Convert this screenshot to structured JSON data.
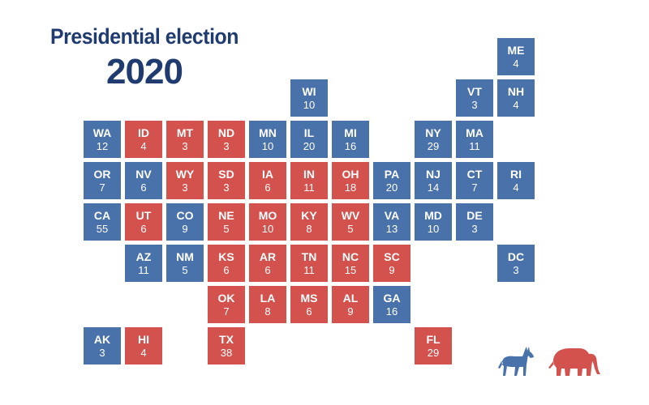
{
  "title": {
    "line1": "Presidential election",
    "line2": "2020"
  },
  "colors": {
    "democrat": "#4a72aa",
    "republican": "#d3524d"
  },
  "icons": {
    "democrat": "donkey-icon",
    "republican": "elephant-icon"
  },
  "states": [
    {
      "abbr": "ME",
      "ev": "4",
      "party": "D",
      "row": 0,
      "col": 10
    },
    {
      "abbr": "WI",
      "ev": "10",
      "party": "D",
      "row": 1,
      "col": 5
    },
    {
      "abbr": "VT",
      "ev": "3",
      "party": "D",
      "row": 1,
      "col": 9
    },
    {
      "abbr": "NH",
      "ev": "4",
      "party": "D",
      "row": 1,
      "col": 10
    },
    {
      "abbr": "WA",
      "ev": "12",
      "party": "D",
      "row": 2,
      "col": 0
    },
    {
      "abbr": "ID",
      "ev": "4",
      "party": "R",
      "row": 2,
      "col": 1
    },
    {
      "abbr": "MT",
      "ev": "3",
      "party": "R",
      "row": 2,
      "col": 2
    },
    {
      "abbr": "ND",
      "ev": "3",
      "party": "R",
      "row": 2,
      "col": 3
    },
    {
      "abbr": "MN",
      "ev": "10",
      "party": "D",
      "row": 2,
      "col": 4
    },
    {
      "abbr": "IL",
      "ev": "20",
      "party": "D",
      "row": 2,
      "col": 5
    },
    {
      "abbr": "MI",
      "ev": "16",
      "party": "D",
      "row": 2,
      "col": 6
    },
    {
      "abbr": "NY",
      "ev": "29",
      "party": "D",
      "row": 2,
      "col": 8
    },
    {
      "abbr": "MA",
      "ev": "11",
      "party": "D",
      "row": 2,
      "col": 9
    },
    {
      "abbr": "OR",
      "ev": "7",
      "party": "D",
      "row": 3,
      "col": 0
    },
    {
      "abbr": "NV",
      "ev": "6",
      "party": "D",
      "row": 3,
      "col": 1
    },
    {
      "abbr": "WY",
      "ev": "3",
      "party": "R",
      "row": 3,
      "col": 2
    },
    {
      "abbr": "SD",
      "ev": "3",
      "party": "R",
      "row": 3,
      "col": 3
    },
    {
      "abbr": "IA",
      "ev": "6",
      "party": "R",
      "row": 3,
      "col": 4
    },
    {
      "abbr": "IN",
      "ev": "11",
      "party": "R",
      "row": 3,
      "col": 5
    },
    {
      "abbr": "OH",
      "ev": "18",
      "party": "R",
      "row": 3,
      "col": 6
    },
    {
      "abbr": "PA",
      "ev": "20",
      "party": "D",
      "row": 3,
      "col": 7
    },
    {
      "abbr": "NJ",
      "ev": "14",
      "party": "D",
      "row": 3,
      "col": 8
    },
    {
      "abbr": "CT",
      "ev": "7",
      "party": "D",
      "row": 3,
      "col": 9
    },
    {
      "abbr": "RI",
      "ev": "4",
      "party": "D",
      "row": 3,
      "col": 10
    },
    {
      "abbr": "CA",
      "ev": "55",
      "party": "D",
      "row": 4,
      "col": 0
    },
    {
      "abbr": "UT",
      "ev": "6",
      "party": "R",
      "row": 4,
      "col": 1
    },
    {
      "abbr": "CO",
      "ev": "9",
      "party": "D",
      "row": 4,
      "col": 2
    },
    {
      "abbr": "NE",
      "ev": "5",
      "party": "R",
      "row": 4,
      "col": 3
    },
    {
      "abbr": "MO",
      "ev": "10",
      "party": "R",
      "row": 4,
      "col": 4
    },
    {
      "abbr": "KY",
      "ev": "8",
      "party": "R",
      "row": 4,
      "col": 5
    },
    {
      "abbr": "WV",
      "ev": "5",
      "party": "R",
      "row": 4,
      "col": 6
    },
    {
      "abbr": "VA",
      "ev": "13",
      "party": "D",
      "row": 4,
      "col": 7
    },
    {
      "abbr": "MD",
      "ev": "10",
      "party": "D",
      "row": 4,
      "col": 8
    },
    {
      "abbr": "DE",
      "ev": "3",
      "party": "D",
      "row": 4,
      "col": 9
    },
    {
      "abbr": "AZ",
      "ev": "11",
      "party": "D",
      "row": 5,
      "col": 1
    },
    {
      "abbr": "NM",
      "ev": "5",
      "party": "D",
      "row": 5,
      "col": 2
    },
    {
      "abbr": "KS",
      "ev": "6",
      "party": "R",
      "row": 5,
      "col": 3
    },
    {
      "abbr": "AR",
      "ev": "6",
      "party": "R",
      "row": 5,
      "col": 4
    },
    {
      "abbr": "TN",
      "ev": "11",
      "party": "R",
      "row": 5,
      "col": 5
    },
    {
      "abbr": "NC",
      "ev": "15",
      "party": "R",
      "row": 5,
      "col": 6
    },
    {
      "abbr": "SC",
      "ev": "9",
      "party": "R",
      "row": 5,
      "col": 7
    },
    {
      "abbr": "DC",
      "ev": "3",
      "party": "D",
      "row": 5,
      "col": 10
    },
    {
      "abbr": "OK",
      "ev": "7",
      "party": "R",
      "row": 6,
      "col": 3
    },
    {
      "abbr": "LA",
      "ev": "8",
      "party": "R",
      "row": 6,
      "col": 4
    },
    {
      "abbr": "MS",
      "ev": "6",
      "party": "R",
      "row": 6,
      "col": 5
    },
    {
      "abbr": "AL",
      "ev": "9",
      "party": "R",
      "row": 6,
      "col": 6
    },
    {
      "abbr": "GA",
      "ev": "16",
      "party": "D",
      "row": 6,
      "col": 7
    },
    {
      "abbr": "AK",
      "ev": "3",
      "party": "D",
      "row": 7,
      "col": 0
    },
    {
      "abbr": "HI",
      "ev": "4",
      "party": "R",
      "row": 7,
      "col": 1
    },
    {
      "abbr": "TX",
      "ev": "38",
      "party": "R",
      "row": 7,
      "col": 3
    },
    {
      "abbr": "FL",
      "ev": "29",
      "party": "R",
      "row": 7,
      "col": 8
    }
  ]
}
